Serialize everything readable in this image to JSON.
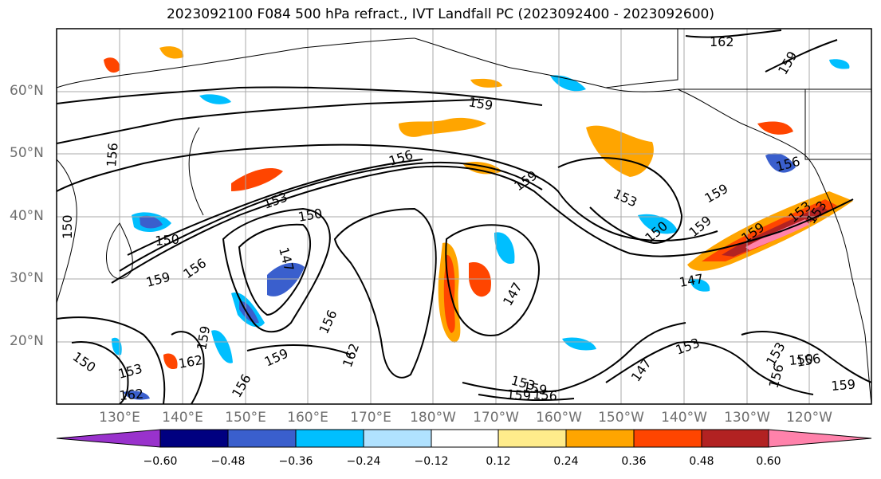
{
  "title": "2023092100 F084 500 hPa refract., IVT Landfall PC (2023092400 - 2023092600)",
  "lat_labels": [
    "60°N",
    "50°N",
    "40°N",
    "30°N",
    "20°N"
  ],
  "lon_labels": [
    "130°E",
    "140°E",
    "150°E",
    "160°E",
    "170°E",
    "180°W",
    "170°W",
    "160°W",
    "150°W",
    "140°W",
    "130°W",
    "120°W"
  ],
  "contour_labels": [
    "162",
    "159",
    "159",
    "156",
    "156",
    "159",
    "153",
    "150",
    "153",
    "150",
    "159",
    "150",
    "159",
    "156",
    "147",
    "147",
    "150",
    "153",
    "156",
    "159",
    "147",
    "159",
    "156",
    "153",
    "150",
    "159",
    "162",
    "153",
    "162",
    "159",
    "156",
    "159",
    "156",
    "153",
    "150",
    "147",
    "162",
    "159",
    "156",
    "153",
    "156",
    "159",
    "153"
  ],
  "colorbar": {
    "ticks": [
      "−0.60",
      "−0.48",
      "−0.36",
      "−0.24",
      "−0.12",
      "0.12",
      "0.24",
      "0.36",
      "0.48",
      "0.60"
    ],
    "colors": [
      "#9932cc",
      "#000080",
      "#3a5fcd",
      "#00bfff",
      "#b0e2ff",
      "#ffffff",
      "#ffec8b",
      "#ffa500",
      "#ff4500",
      "#b22222",
      "#ff82ab"
    ]
  },
  "colors": {
    "neg_strong": "#3a5fcd",
    "neg": "#00bfff",
    "neg_light": "#b0e2ff",
    "pos_light": "#ffec8b",
    "pos": "#ffa500",
    "pos_strong": "#ff4500",
    "pos_dark": "#b22222",
    "pos_max": "#ff82ab"
  }
}
